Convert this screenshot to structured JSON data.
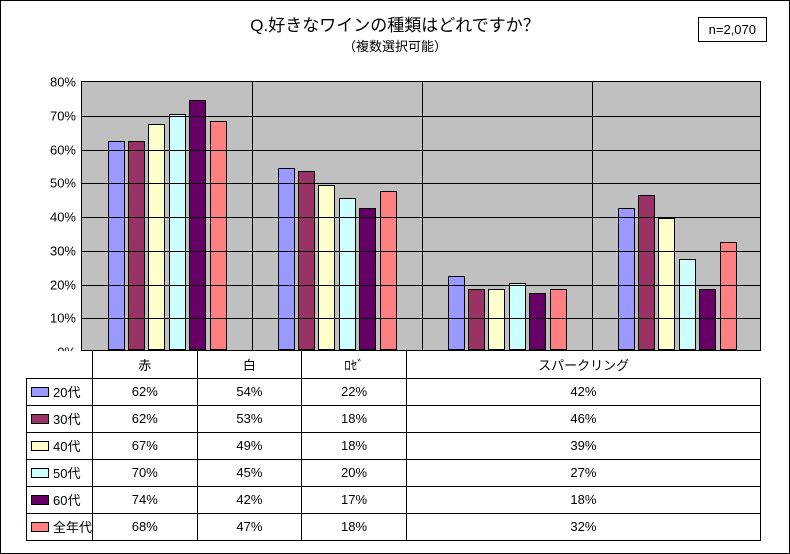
{
  "title": "Q.好きなワインの種類はどれですか？",
  "subtitle": "（複数選択可能）",
  "n_label": "n=2,070",
  "chart": {
    "type": "bar",
    "categories": [
      "赤",
      "白",
      "ﾛｾﾞ",
      "スパークリング"
    ],
    "series": [
      {
        "name": "20代",
        "color": "#9999ff",
        "values": [
          62,
          54,
          22,
          42
        ]
      },
      {
        "name": "30代",
        "color": "#993366",
        "values": [
          62,
          53,
          18,
          46
        ]
      },
      {
        "name": "40代",
        "color": "#ffffcc",
        "values": [
          67,
          49,
          18,
          39
        ]
      },
      {
        "name": "50代",
        "color": "#ccffff",
        "values": [
          70,
          45,
          20,
          27
        ]
      },
      {
        "name": "60代",
        "color": "#660066",
        "values": [
          74,
          42,
          17,
          18
        ]
      },
      {
        "name": "全年代",
        "color": "#ff8080",
        "values": [
          68,
          47,
          18,
          32
        ]
      }
    ],
    "y_max": 80,
    "y_step": 10,
    "plot_bg": "#c0c0c0",
    "grid_color": "#000000",
    "axis_fontsize": 13,
    "bar_border": "#000000",
    "bar_rel_width": 0.1,
    "bar_rel_spacing": 0.02,
    "group_legend_col_width": 55
  }
}
